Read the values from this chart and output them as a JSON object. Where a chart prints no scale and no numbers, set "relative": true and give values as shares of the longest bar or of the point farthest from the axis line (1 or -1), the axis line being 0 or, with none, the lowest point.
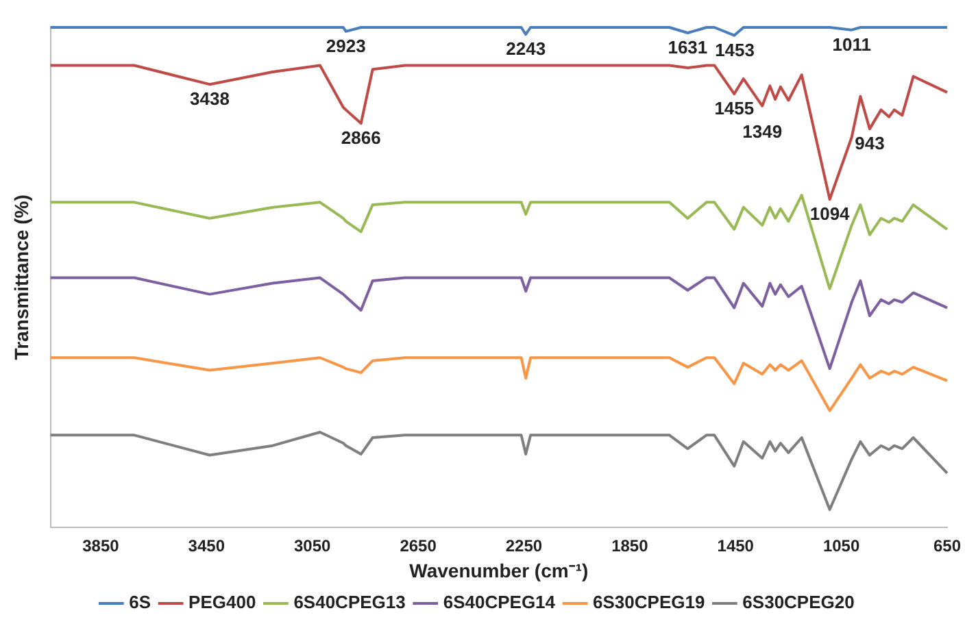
{
  "chart_data": {
    "type": "line",
    "relative": true,
    "xlabel": "Wavenumber (cm⁻¹)",
    "ylabel": "Transmittance (%)",
    "xlim": [
      4040,
      650
    ],
    "xticks": [
      3850,
      3450,
      3050,
      2650,
      2250,
      1850,
      1450,
      1050,
      650
    ],
    "grid": false,
    "legend": "bottom",
    "x": [
      4040,
      3723,
      3438,
      3200,
      3021,
      2933,
      2923,
      2866,
      2822,
      2700,
      2260,
      2243,
      2225,
      1700,
      1631,
      1560,
      1530,
      1455,
      1420,
      1349,
      1320,
      1300,
      1280,
      1250,
      1200,
      1094,
      1011,
      978,
      943,
      900,
      870,
      850,
      820,
      778,
      650
    ],
    "series": [
      {
        "name": "6S",
        "color": "#4a7ebb",
        "values": [
          1,
          1,
          1,
          1,
          1,
          1,
          0.992,
          1,
          1,
          1,
          1,
          0.986,
          1,
          1,
          0.989,
          1,
          1,
          0.984,
          1,
          1,
          1,
          1,
          1,
          1,
          1,
          1,
          0.995,
          1,
          1,
          1,
          1,
          1,
          1,
          1,
          1
        ]
      },
      {
        "name": "PEG400",
        "color": "#be4b48",
        "values": [
          0.924,
          0.924,
          0.886,
          0.911,
          0.924,
          0.84,
          0.835,
          0.808,
          0.916,
          0.924,
          0.924,
          0.924,
          0.924,
          0.924,
          0.919,
          0.924,
          0.924,
          0.867,
          0.897,
          0.843,
          0.883,
          0.856,
          0.881,
          0.854,
          0.905,
          0.656,
          0.78,
          0.862,
          0.797,
          0.835,
          0.821,
          0.835,
          0.824,
          0.902,
          0.87
        ]
      },
      {
        "name": "6S40CPEG13",
        "color": "#98b954",
        "values": [
          0.65,
          0.65,
          0.618,
          0.64,
          0.65,
          0.618,
          0.612,
          0.591,
          0.645,
          0.65,
          0.65,
          0.626,
          0.65,
          0.65,
          0.618,
          0.65,
          0.65,
          0.596,
          0.64,
          0.604,
          0.64,
          0.618,
          0.637,
          0.612,
          0.664,
          0.477,
          0.604,
          0.645,
          0.585,
          0.618,
          0.61,
          0.618,
          0.612,
          0.645,
          0.596
        ]
      },
      {
        "name": "6S40CPEG14",
        "color": "#7d60a0",
        "values": [
          0.499,
          0.499,
          0.466,
          0.488,
          0.499,
          0.466,
          0.461,
          0.434,
          0.493,
          0.499,
          0.499,
          0.472,
          0.499,
          0.499,
          0.474,
          0.499,
          0.499,
          0.439,
          0.488,
          0.442,
          0.488,
          0.466,
          0.485,
          0.461,
          0.482,
          0.317,
          0.45,
          0.493,
          0.423,
          0.455,
          0.447,
          0.455,
          0.45,
          0.469,
          0.439
        ]
      },
      {
        "name": "6S30CPEG19",
        "color": "#f79646",
        "values": [
          0.339,
          0.339,
          0.314,
          0.328,
          0.339,
          0.32,
          0.317,
          0.309,
          0.333,
          0.339,
          0.339,
          0.298,
          0.339,
          0.339,
          0.32,
          0.339,
          0.339,
          0.287,
          0.328,
          0.306,
          0.325,
          0.314,
          0.325,
          0.314,
          0.333,
          0.233,
          0.298,
          0.325,
          0.298,
          0.312,
          0.306,
          0.312,
          0.306,
          0.32,
          0.293
        ]
      },
      {
        "name": "6S30CPEG20",
        "color": "#7f7f7f",
        "values": [
          0.184,
          0.184,
          0.144,
          0.163,
          0.19,
          0.168,
          0.163,
          0.146,
          0.179,
          0.184,
          0.184,
          0.146,
          0.184,
          0.184,
          0.157,
          0.184,
          0.184,
          0.122,
          0.171,
          0.138,
          0.171,
          0.152,
          0.168,
          0.149,
          0.179,
          0.035,
          0.136,
          0.171,
          0.144,
          0.163,
          0.155,
          0.163,
          0.157,
          0.179,
          0.108
        ]
      }
    ],
    "annotations": [
      {
        "text": "2923",
        "x": 2923,
        "y": 0.992
      },
      {
        "text": "2243",
        "x": 2243,
        "y": 0.986
      },
      {
        "text": "1631",
        "x": 1631,
        "y": 0.989
      },
      {
        "text": "1453",
        "x": 1453,
        "y": 0.984
      },
      {
        "text": "1011",
        "x": 1011,
        "y": 0.995
      },
      {
        "text": "3438",
        "x": 3438,
        "y": 0.886
      },
      {
        "text": "2866",
        "x": 2866,
        "y": 0.808
      },
      {
        "text": "1455",
        "x": 1455,
        "y": 0.867
      },
      {
        "text": "1349",
        "x": 1349,
        "y": 0.843
      },
      {
        "text": "943",
        "x": 943,
        "y": 0.797
      },
      {
        "text": "1094",
        "x": 1094,
        "y": 0.656
      }
    ]
  }
}
